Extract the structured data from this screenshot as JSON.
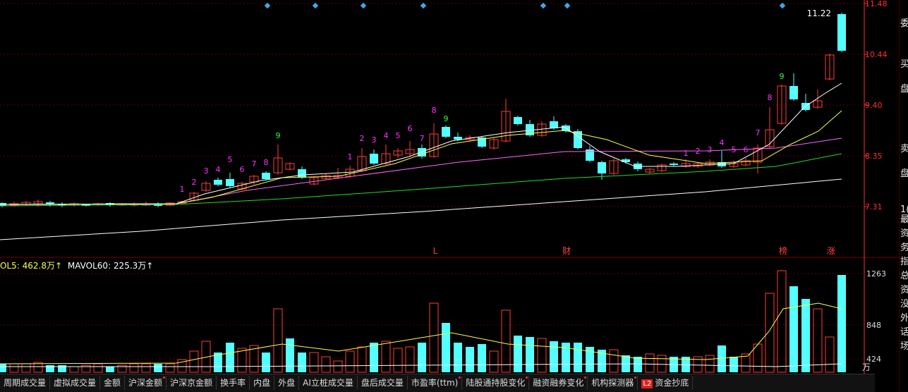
{
  "colors": {
    "up": "#ff3c3c",
    "down": "#54ffff",
    "ma5": "#ffffff",
    "ma10": "#ffff4a",
    "ma20": "#ff66ff",
    "ma60": "#22dd22",
    "ma250": "#ffffff",
    "diamond": "#3fa8e0",
    "grid": "#5a0000",
    "axis": "#ff3030",
    "td_magenta": "#ff33ff",
    "td_green": "#33ff33"
  },
  "price_axis": {
    "ticks": [
      "11.48",
      "10.44",
      "9.40",
      "8.35",
      "7.31"
    ]
  },
  "volume_axis": {
    "ticks": [
      "1263",
      "848",
      "424"
    ],
    "unit": "万"
  },
  "last_price_label": "11.22",
  "volume_header": {
    "vol5": "OL5: 462.8万↑",
    "mavol60": "MAVOL60: 225.3万↑"
  },
  "event_markers": [
    "L",
    "财",
    "榜",
    "涨"
  ],
  "td_counts": [
    "1",
    "2",
    "3",
    "4",
    "5",
    "6",
    "7",
    "8",
    "9",
    "1",
    "2",
    "3",
    "4",
    "5",
    "6",
    "7",
    "8",
    "9",
    "1",
    "2",
    "3",
    "4",
    "5",
    "6",
    "7",
    "8",
    "9"
  ],
  "right_panel_chars": [
    "委",
    "买",
    "盘",
    "卖",
    "盘",
    "1(",
    "最",
    "资",
    "务",
    "指",
    "总",
    "资",
    "没",
    "外",
    "话",
    "场"
  ],
  "tabs": [
    {
      "label": "周期成交量",
      "dot": false
    },
    {
      "label": "虚拟成交量",
      "dot": false
    },
    {
      "label": "金额",
      "dot": false
    },
    {
      "label": "沪深金额",
      "dot": true
    },
    {
      "label": "沪深京金额",
      "dot": false
    },
    {
      "label": "换手率",
      "dot": false
    },
    {
      "label": "内盘",
      "dot": false
    },
    {
      "label": "外盘",
      "dot": false
    },
    {
      "label": "AI立桩成交量",
      "dot": false
    },
    {
      "label": "盘后成交量",
      "dot": false
    },
    {
      "label": "市盈率(ttm)",
      "dot": true
    },
    {
      "label": "陆股通持股变化",
      "dot": true
    },
    {
      "label": "融资融券变化",
      "dot": true
    },
    {
      "label": "机构探测器",
      "dot": true
    },
    {
      "label": "资金抄底",
      "dot": false,
      "badge": "L2"
    }
  ]
}
